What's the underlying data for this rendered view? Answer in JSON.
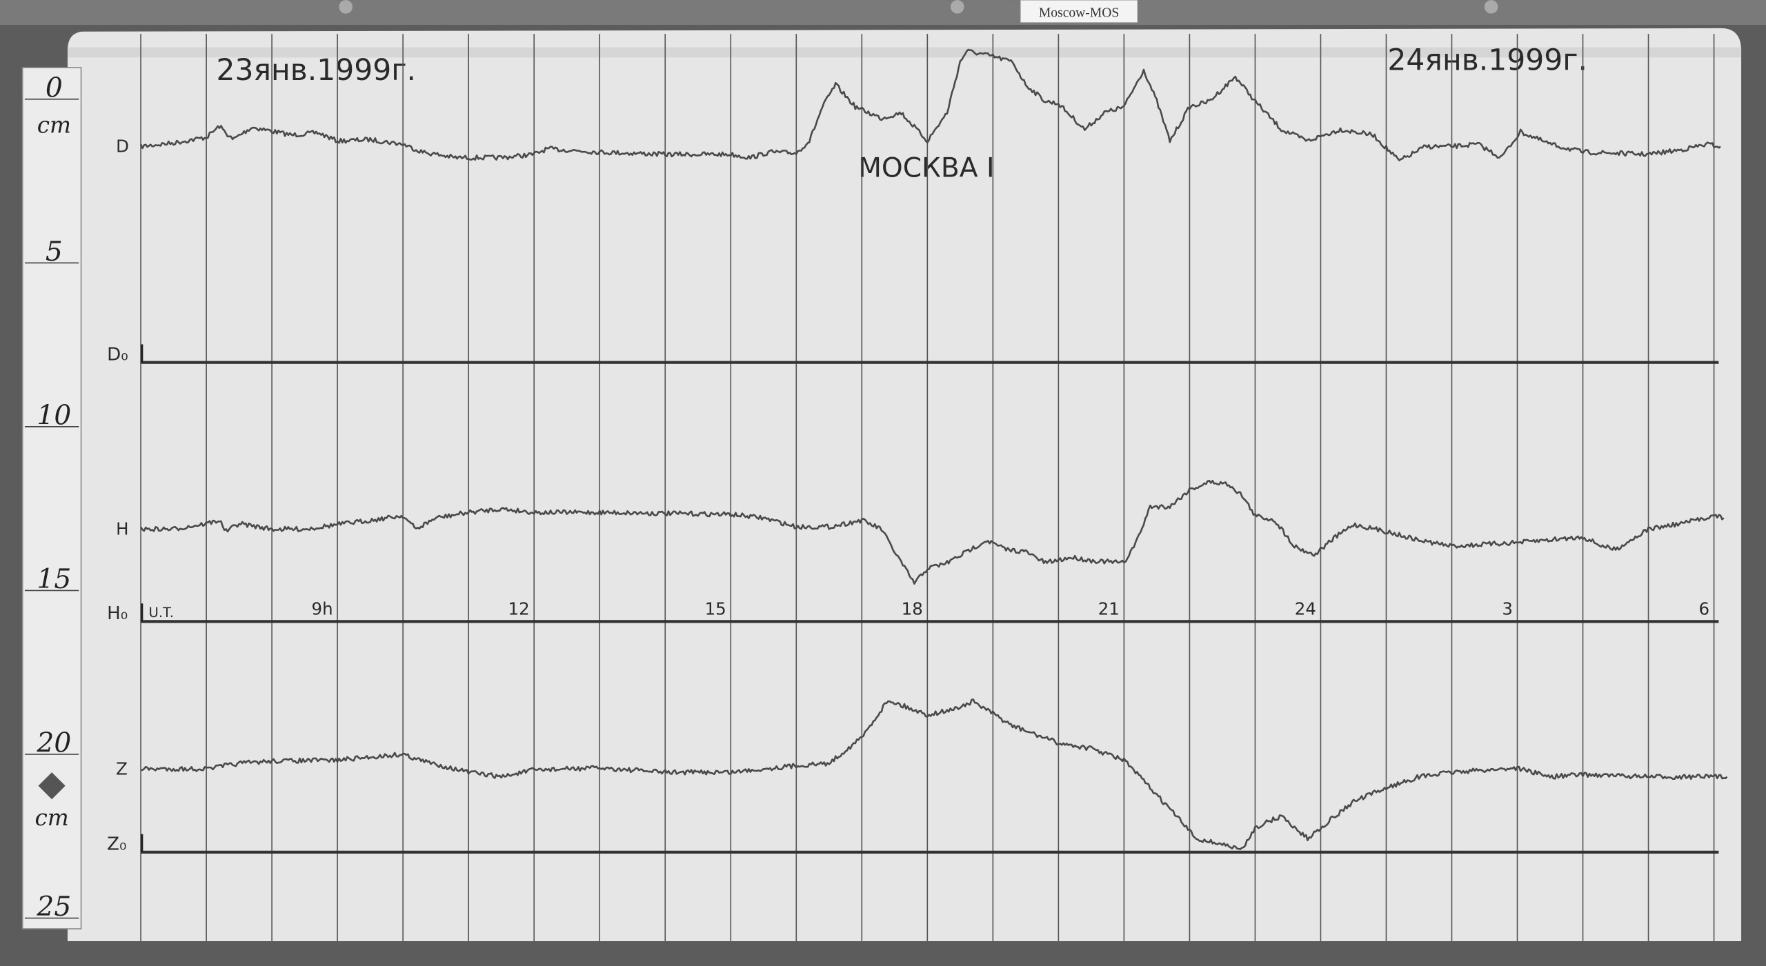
{
  "tag_label": "Moscow-MOS",
  "date_start": "23янв.1999г.",
  "date_end": "24янв.1999г.",
  "station": "МОСКВА I",
  "ruler": {
    "unit_top": "cm",
    "unit_bottom": "cm",
    "ticks": [
      "0",
      "5",
      "10",
      "15",
      "20",
      "25"
    ]
  },
  "colors": {
    "paper": "#e4e4e4",
    "trace": "#4a4a4a",
    "background": "#5a5a5a"
  },
  "chart_data": {
    "type": "line",
    "xlabel": "U.T.",
    "x_unit": "hours UT",
    "x_range": [
      6,
      30
    ],
    "x_tick_labels": [
      {
        "hour": 9,
        "label": "9h"
      },
      {
        "hour": 12,
        "label": "12"
      },
      {
        "hour": 15,
        "label": "15"
      },
      {
        "hour": 18,
        "label": "18"
      },
      {
        "hour": 21,
        "label": "21"
      },
      {
        "hour": 24,
        "label": "24"
      },
      {
        "hour": 27,
        "label": "3"
      },
      {
        "hour": 30,
        "label": "6"
      }
    ],
    "y_unit": "cm",
    "y_range": [
      0,
      25
    ],
    "grid": "vertical hourly lines",
    "baselines": [
      {
        "name": "D₀",
        "cm": 8.38
      },
      {
        "name": "H₀",
        "cm": 16.29
      },
      {
        "name": "Z₀",
        "cm": 23.33
      }
    ],
    "series": [
      {
        "name": "D",
        "points": [
          [
            6.0,
            1.79
          ],
          [
            6.5,
            1.68
          ],
          [
            7.0,
            1.51
          ],
          [
            7.2,
            1.17
          ],
          [
            7.4,
            1.58
          ],
          [
            7.7,
            1.2
          ],
          [
            8.3,
            1.44
          ],
          [
            8.7,
            1.37
          ],
          [
            9.0,
            1.62
          ],
          [
            9.5,
            1.58
          ],
          [
            10.0,
            1.72
          ],
          [
            10.3,
            1.96
          ],
          [
            10.8,
            2.13
          ],
          [
            11.5,
            2.13
          ],
          [
            12.0,
            2.03
          ],
          [
            12.2,
            1.86
          ],
          [
            13.0,
            1.96
          ],
          [
            14.0,
            2.03
          ],
          [
            15.0,
            2.03
          ],
          [
            15.3,
            2.13
          ],
          [
            15.6,
            1.96
          ],
          [
            16.0,
            1.99
          ],
          [
            16.2,
            1.62
          ],
          [
            16.4,
            0.58
          ],
          [
            16.6,
            -0.1
          ],
          [
            16.9,
            0.58
          ],
          [
            17.3,
            0.93
          ],
          [
            17.6,
            0.76
          ],
          [
            18.0,
            1.62
          ],
          [
            18.3,
            0.76
          ],
          [
            18.5,
            -0.79
          ],
          [
            18.6,
            -1.13
          ],
          [
            19.0,
            -0.96
          ],
          [
            19.3,
            -0.79
          ],
          [
            19.5,
            -0.1
          ],
          [
            19.8,
            0.41
          ],
          [
            20.0,
            0.48
          ],
          [
            20.4,
            1.27
          ],
          [
            20.7,
            0.76
          ],
          [
            21.0,
            0.58
          ],
          [
            21.3,
            -0.55
          ],
          [
            21.5,
            0.41
          ],
          [
            21.7,
            1.62
          ],
          [
            22.0,
            0.58
          ],
          [
            22.3,
            0.41
          ],
          [
            22.7,
            -0.34
          ],
          [
            23.0,
            0.41
          ],
          [
            23.4,
            1.27
          ],
          [
            23.8,
            1.62
          ],
          [
            24.3,
            1.27
          ],
          [
            24.8,
            1.44
          ],
          [
            25.2,
            2.23
          ],
          [
            25.6,
            1.79
          ],
          [
            26.0,
            1.79
          ],
          [
            26.4,
            1.72
          ],
          [
            26.75,
            2.13
          ],
          [
            27.05,
            1.34
          ],
          [
            27.5,
            1.72
          ],
          [
            28.0,
            1.96
          ],
          [
            29.0,
            2.03
          ],
          [
            29.5,
            1.89
          ],
          [
            29.9,
            1.72
          ],
          [
            30.1,
            1.79
          ]
        ]
      },
      {
        "name": "H",
        "points": [
          [
            6.0,
            13.47
          ],
          [
            6.5,
            13.47
          ],
          [
            7.0,
            13.3
          ],
          [
            7.2,
            13.2
          ],
          [
            7.3,
            13.54
          ],
          [
            7.5,
            13.3
          ],
          [
            8.0,
            13.47
          ],
          [
            8.5,
            13.47
          ],
          [
            9.0,
            13.33
          ],
          [
            9.5,
            13.2
          ],
          [
            10.0,
            13.06
          ],
          [
            10.2,
            13.47
          ],
          [
            10.5,
            13.13
          ],
          [
            11.0,
            12.96
          ],
          [
            11.5,
            12.85
          ],
          [
            12.0,
            12.96
          ],
          [
            13.0,
            12.96
          ],
          [
            14.0,
            12.99
          ],
          [
            15.0,
            13.02
          ],
          [
            15.5,
            13.13
          ],
          [
            16.0,
            13.4
          ],
          [
            16.5,
            13.4
          ],
          [
            17.0,
            13.2
          ],
          [
            17.3,
            13.47
          ],
          [
            17.5,
            14.16
          ],
          [
            17.8,
            15.12
          ],
          [
            18.0,
            14.67
          ],
          [
            18.3,
            14.5
          ],
          [
            18.6,
            14.16
          ],
          [
            18.9,
            13.81
          ],
          [
            19.2,
            14.09
          ],
          [
            19.5,
            14.16
          ],
          [
            19.8,
            14.5
          ],
          [
            20.2,
            14.33
          ],
          [
            20.5,
            14.43
          ],
          [
            21.0,
            14.5
          ],
          [
            21.2,
            13.81
          ],
          [
            21.4,
            12.78
          ],
          [
            21.7,
            12.78
          ],
          [
            22.0,
            12.27
          ],
          [
            22.3,
            12.03
          ],
          [
            22.6,
            12.1
          ],
          [
            22.8,
            12.44
          ],
          [
            23.0,
            13.06
          ],
          [
            23.3,
            13.2
          ],
          [
            23.6,
            13.99
          ],
          [
            23.9,
            14.26
          ],
          [
            24.2,
            13.75
          ],
          [
            24.5,
            13.33
          ],
          [
            25.0,
            13.54
          ],
          [
            25.5,
            13.81
          ],
          [
            26.0,
            13.99
          ],
          [
            27.0,
            13.88
          ],
          [
            28.0,
            13.71
          ],
          [
            28.3,
            13.99
          ],
          [
            28.5,
            14.09
          ],
          [
            29.0,
            13.47
          ],
          [
            29.5,
            13.3
          ],
          [
            30.0,
            13.06
          ],
          [
            30.15,
            13.13
          ]
        ]
      },
      {
        "name": "Z",
        "points": [
          [
            6.0,
            20.79
          ],
          [
            7.0,
            20.79
          ],
          [
            7.5,
            20.62
          ],
          [
            8.0,
            20.55
          ],
          [
            9.0,
            20.52
          ],
          [
            10.0,
            20.34
          ],
          [
            10.3,
            20.55
          ],
          [
            11.0,
            20.89
          ],
          [
            11.5,
            21.03
          ],
          [
            12.0,
            20.82
          ],
          [
            13.0,
            20.76
          ],
          [
            14.0,
            20.89
          ],
          [
            15.0,
            20.89
          ],
          [
            16.0,
            20.69
          ],
          [
            16.5,
            20.62
          ],
          [
            17.0,
            19.83
          ],
          [
            17.4,
            18.69
          ],
          [
            18.0,
            19.14
          ],
          [
            18.4,
            18.97
          ],
          [
            18.7,
            18.73
          ],
          [
            19.3,
            19.48
          ],
          [
            20.0,
            20.0
          ],
          [
            20.5,
            20.17
          ],
          [
            21.0,
            20.52
          ],
          [
            21.4,
            21.37
          ],
          [
            21.8,
            22.23
          ],
          [
            22.1,
            22.92
          ],
          [
            22.5,
            23.09
          ],
          [
            22.8,
            23.26
          ],
          [
            23.0,
            22.58
          ],
          [
            23.4,
            22.23
          ],
          [
            23.8,
            22.92
          ],
          [
            24.0,
            22.58
          ],
          [
            24.5,
            21.79
          ],
          [
            25.0,
            21.37
          ],
          [
            25.5,
            21.03
          ],
          [
            26.0,
            20.89
          ],
          [
            27.0,
            20.76
          ],
          [
            27.5,
            21.03
          ],
          [
            28.0,
            20.96
          ],
          [
            29.0,
            21.03
          ],
          [
            30.2,
            21.03
          ]
        ]
      }
    ]
  }
}
